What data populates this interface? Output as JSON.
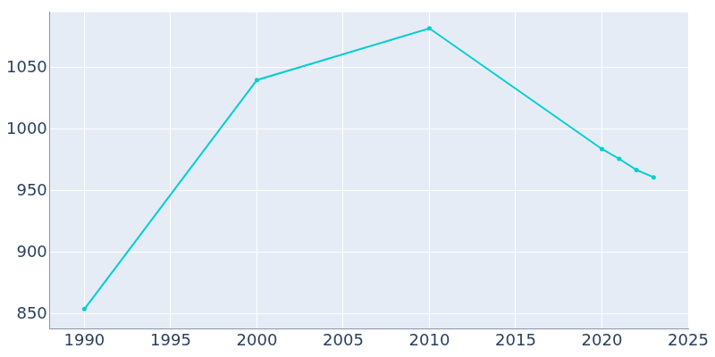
{
  "chart_data": {
    "type": "line",
    "x": [
      1990,
      2000,
      2010,
      2020,
      2021,
      2022,
      2023
    ],
    "values": [
      854,
      1040,
      1082,
      984,
      976,
      967,
      961
    ],
    "color": "#00ced1",
    "marker": "circle",
    "line_style": "solid",
    "xlim": [
      1988,
      2025
    ],
    "xticks": [
      1990,
      1995,
      2000,
      2005,
      2010,
      2015,
      2020,
      2025
    ],
    "ylim": [
      838,
      1095
    ],
    "yticks": [
      850,
      900,
      950,
      1000,
      1050
    ],
    "grid": true
  }
}
